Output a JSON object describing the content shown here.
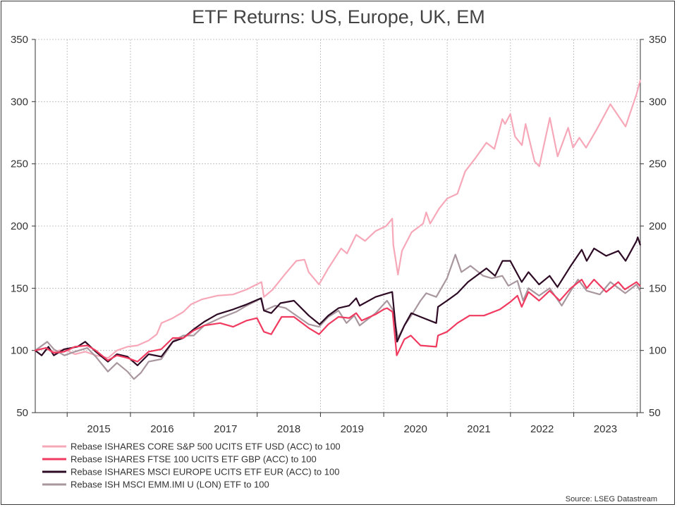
{
  "chart_data": {
    "type": "line",
    "title": "ETF Returns: US, Europe, UK, EM",
    "xlabel": "",
    "ylabel": "",
    "ylim": [
      50,
      350
    ],
    "y_ticks": [
      50,
      100,
      150,
      200,
      250,
      300,
      350
    ],
    "x_range": [
      "2014-07-01",
      "2024-01-20"
    ],
    "x_tick_labels": [
      "2015",
      "2016",
      "2017",
      "2018",
      "2019",
      "2020",
      "2021",
      "2022",
      "2023"
    ],
    "grid": true,
    "legend_position": "bottom-left",
    "series": [
      {
        "name": "Rebase ISHARES CORE S&P 500 UCITS ETF USD (ACC) to 100",
        "color": "#f7a8b8",
        "points": [
          [
            "2014-07-01",
            100
          ],
          [
            "2014-09-01",
            102
          ],
          [
            "2014-10-15",
            99
          ],
          [
            "2014-12-15",
            101
          ],
          [
            "2015-02-15",
            97
          ],
          [
            "2015-04-15",
            99
          ],
          [
            "2015-06-15",
            96
          ],
          [
            "2015-08-25",
            94
          ],
          [
            "2015-10-15",
            100
          ],
          [
            "2015-12-15",
            103
          ],
          [
            "2016-02-10",
            104
          ],
          [
            "2016-04-15",
            108
          ],
          [
            "2016-06-01",
            113
          ],
          [
            "2016-06-28",
            122
          ],
          [
            "2016-09-01",
            126
          ],
          [
            "2016-11-01",
            131
          ],
          [
            "2016-12-15",
            137
          ],
          [
            "2017-02-15",
            141
          ],
          [
            "2017-05-15",
            144
          ],
          [
            "2017-08-15",
            145
          ],
          [
            "2017-11-01",
            149
          ],
          [
            "2018-01-26",
            155
          ],
          [
            "2018-02-09",
            143
          ],
          [
            "2018-04-01",
            149
          ],
          [
            "2018-06-15",
            162
          ],
          [
            "2018-08-15",
            172
          ],
          [
            "2018-10-01",
            173
          ],
          [
            "2018-10-25",
            163
          ],
          [
            "2018-12-24",
            153
          ],
          [
            "2019-02-15",
            166
          ],
          [
            "2019-04-30",
            182
          ],
          [
            "2019-06-03",
            178
          ],
          [
            "2019-07-26",
            193
          ],
          [
            "2019-09-15",
            188
          ],
          [
            "2019-11-15",
            196
          ],
          [
            "2020-01-15",
            200
          ],
          [
            "2020-02-19",
            206
          ],
          [
            "2020-02-25",
            185
          ],
          [
            "2020-03-23",
            161
          ],
          [
            "2020-04-15",
            180
          ],
          [
            "2020-06-10",
            195
          ],
          [
            "2020-08-15",
            202
          ],
          [
            "2020-09-02",
            211
          ],
          [
            "2020-09-25",
            202
          ],
          [
            "2020-11-15",
            214
          ],
          [
            "2020-12-31",
            222
          ],
          [
            "2021-03-01",
            226
          ],
          [
            "2021-04-15",
            244
          ],
          [
            "2021-06-15",
            255
          ],
          [
            "2021-08-15",
            267
          ],
          [
            "2021-09-30",
            262
          ],
          [
            "2021-11-15",
            286
          ],
          [
            "2021-12-01",
            282
          ],
          [
            "2021-12-31",
            290
          ],
          [
            "2022-01-27",
            272
          ],
          [
            "2022-03-08",
            265
          ],
          [
            "2022-03-29",
            282
          ],
          [
            "2022-05-20",
            252
          ],
          [
            "2022-06-16",
            248
          ],
          [
            "2022-08-16",
            287
          ],
          [
            "2022-09-30",
            256
          ],
          [
            "2022-11-30",
            279
          ],
          [
            "2022-12-28",
            263
          ],
          [
            "2023-02-02",
            271
          ],
          [
            "2023-03-13",
            263
          ],
          [
            "2023-05-15",
            278
          ],
          [
            "2023-07-31",
            298
          ],
          [
            "2023-10-27",
            280
          ],
          [
            "2023-12-29",
            306
          ],
          [
            "2024-01-19",
            317
          ]
        ]
      },
      {
        "name": "Rebase ISHARES FTSE 100 UCITS ETF GBP (ACC) to 100",
        "color": "#f03a5f",
        "points": [
          [
            "2014-07-01",
            100
          ],
          [
            "2014-09-01",
            102
          ],
          [
            "2014-10-15",
            98
          ],
          [
            "2014-12-15",
            99
          ],
          [
            "2015-02-15",
            103
          ],
          [
            "2015-04-27",
            104
          ],
          [
            "2015-06-15",
            100
          ],
          [
            "2015-08-24",
            92
          ],
          [
            "2015-10-15",
            96
          ],
          [
            "2015-12-15",
            94
          ],
          [
            "2016-02-11",
            91
          ],
          [
            "2016-04-15",
            99
          ],
          [
            "2016-06-27",
            101
          ],
          [
            "2016-09-01",
            110
          ],
          [
            "2016-11-01",
            110
          ],
          [
            "2016-12-31",
            116
          ],
          [
            "2017-03-01",
            120
          ],
          [
            "2017-06-01",
            122
          ],
          [
            "2017-08-15",
            119
          ],
          [
            "2017-11-01",
            124
          ],
          [
            "2017-12-31",
            126
          ],
          [
            "2018-02-09",
            115
          ],
          [
            "2018-03-23",
            113
          ],
          [
            "2018-05-22",
            127
          ],
          [
            "2018-08-01",
            127
          ],
          [
            "2018-10-26",
            118
          ],
          [
            "2018-12-24",
            113
          ],
          [
            "2019-02-15",
            121
          ],
          [
            "2019-04-15",
            127
          ],
          [
            "2019-06-15",
            126
          ],
          [
            "2019-07-26",
            130
          ],
          [
            "2019-08-27",
            124
          ],
          [
            "2019-11-15",
            129
          ],
          [
            "2019-12-31",
            133
          ],
          [
            "2020-01-20",
            134
          ],
          [
            "2020-02-21",
            131
          ],
          [
            "2020-03-16",
            96
          ],
          [
            "2020-03-23",
            98
          ],
          [
            "2020-04-29",
            109
          ],
          [
            "2020-06-05",
            112
          ],
          [
            "2020-07-31",
            104
          ],
          [
            "2020-10-30",
            103
          ],
          [
            "2020-11-09",
            112
          ],
          [
            "2020-12-31",
            115
          ],
          [
            "2021-03-01",
            122
          ],
          [
            "2021-05-10",
            128
          ],
          [
            "2021-08-01",
            128
          ],
          [
            "2021-11-01",
            133
          ],
          [
            "2021-12-31",
            139
          ],
          [
            "2022-02-10",
            144
          ],
          [
            "2022-03-07",
            135
          ],
          [
            "2022-04-15",
            147
          ],
          [
            "2022-06-15",
            140
          ],
          [
            "2022-08-15",
            148
          ],
          [
            "2022-10-12",
            140
          ],
          [
            "2022-12-15",
            150
          ],
          [
            "2023-02-16",
            157
          ],
          [
            "2023-03-17",
            150
          ],
          [
            "2023-04-28",
            157
          ],
          [
            "2023-07-07",
            147
          ],
          [
            "2023-09-15",
            155
          ],
          [
            "2023-10-23",
            149
          ],
          [
            "2023-12-29",
            155
          ],
          [
            "2024-01-17",
            152
          ]
        ]
      },
      {
        "name": "Rebase ISHARES MSCI EUROPE UCITS ETF EUR (ACC) to 100",
        "color": "#2e0b25",
        "points": [
          [
            "2014-07-01",
            100
          ],
          [
            "2014-08-07",
            96
          ],
          [
            "2014-09-15",
            103
          ],
          [
            "2014-10-16",
            96
          ],
          [
            "2014-12-15",
            101
          ],
          [
            "2015-03-01",
            103
          ],
          [
            "2015-04-15",
            107
          ],
          [
            "2015-06-15",
            99
          ],
          [
            "2015-08-24",
            91
          ],
          [
            "2015-10-15",
            97
          ],
          [
            "2015-12-15",
            95
          ],
          [
            "2016-02-11",
            88
          ],
          [
            "2016-04-15",
            97
          ],
          [
            "2016-06-27",
            95
          ],
          [
            "2016-09-01",
            107
          ],
          [
            "2016-11-01",
            110
          ],
          [
            "2016-12-31",
            117
          ],
          [
            "2017-03-01",
            123
          ],
          [
            "2017-05-15",
            129
          ],
          [
            "2017-08-15",
            133
          ],
          [
            "2017-11-01",
            137
          ],
          [
            "2018-01-23",
            142
          ],
          [
            "2018-02-09",
            132
          ],
          [
            "2018-03-23",
            130
          ],
          [
            "2018-05-15",
            138
          ],
          [
            "2018-08-01",
            140
          ],
          [
            "2018-10-26",
            128
          ],
          [
            "2018-12-27",
            121
          ],
          [
            "2019-02-15",
            128
          ],
          [
            "2019-04-15",
            134
          ],
          [
            "2019-06-15",
            136
          ],
          [
            "2019-07-26",
            142
          ],
          [
            "2019-08-15",
            136
          ],
          [
            "2019-11-15",
            143
          ],
          [
            "2019-12-31",
            145
          ],
          [
            "2020-02-19",
            147
          ],
          [
            "2020-03-18",
            107
          ],
          [
            "2020-04-29",
            120
          ],
          [
            "2020-06-08",
            130
          ],
          [
            "2020-07-31",
            127
          ],
          [
            "2020-10-30",
            122
          ],
          [
            "2020-11-09",
            135
          ],
          [
            "2020-12-31",
            140
          ],
          [
            "2021-03-01",
            146
          ],
          [
            "2021-05-01",
            155
          ],
          [
            "2021-08-15",
            166
          ],
          [
            "2021-10-04",
            160
          ],
          [
            "2021-11-16",
            172
          ],
          [
            "2021-12-31",
            172
          ],
          [
            "2022-03-07",
            155
          ],
          [
            "2022-04-15",
            163
          ],
          [
            "2022-06-15",
            153
          ],
          [
            "2022-08-15",
            160
          ],
          [
            "2022-09-29",
            151
          ],
          [
            "2022-12-15",
            168
          ],
          [
            "2023-02-16",
            181
          ],
          [
            "2023-03-17",
            172
          ],
          [
            "2023-04-28",
            182
          ],
          [
            "2023-07-07",
            176
          ],
          [
            "2023-09-15",
            180
          ],
          [
            "2023-10-27",
            172
          ],
          [
            "2023-12-29",
            188
          ],
          [
            "2024-01-05",
            191
          ],
          [
            "2024-01-19",
            185
          ]
        ]
      },
      {
        "name": "Rebase ISH MSCI EMM.IMI U (LON) ETF to 100",
        "color": "#a9979f",
        "points": [
          [
            "2014-07-01",
            100
          ],
          [
            "2014-09-08",
            107
          ],
          [
            "2014-10-16",
            101
          ],
          [
            "2014-12-16",
            96
          ],
          [
            "2015-02-15",
            99
          ],
          [
            "2015-04-27",
            102
          ],
          [
            "2015-06-15",
            95
          ],
          [
            "2015-08-24",
            83
          ],
          [
            "2015-10-15",
            90
          ],
          [
            "2015-12-15",
            83
          ],
          [
            "2016-01-21",
            77
          ],
          [
            "2016-03-01",
            82
          ],
          [
            "2016-04-15",
            91
          ],
          [
            "2016-06-27",
            93
          ],
          [
            "2016-09-07",
            108
          ],
          [
            "2016-11-01",
            112
          ],
          [
            "2016-12-31",
            112
          ],
          [
            "2017-03-01",
            120
          ],
          [
            "2017-06-01",
            126
          ],
          [
            "2017-09-01",
            131
          ],
          [
            "2017-11-01",
            136
          ],
          [
            "2018-01-26",
            142
          ],
          [
            "2018-02-09",
            132
          ],
          [
            "2018-04-15",
            136
          ],
          [
            "2018-06-15",
            134
          ],
          [
            "2018-10-26",
            121
          ],
          [
            "2018-12-24",
            119
          ],
          [
            "2019-02-15",
            127
          ],
          [
            "2019-04-15",
            132
          ],
          [
            "2019-05-31",
            122
          ],
          [
            "2019-07-15",
            128
          ],
          [
            "2019-08-15",
            120
          ],
          [
            "2019-11-15",
            130
          ],
          [
            "2019-12-31",
            137
          ],
          [
            "2020-01-20",
            140
          ],
          [
            "2020-02-21",
            133
          ],
          [
            "2020-03-23",
            110
          ],
          [
            "2020-04-29",
            120
          ],
          [
            "2020-06-08",
            128
          ],
          [
            "2020-07-31",
            140
          ],
          [
            "2020-09-02",
            146
          ],
          [
            "2020-10-30",
            143
          ],
          [
            "2020-12-31",
            158
          ],
          [
            "2021-02-17",
            177
          ],
          [
            "2021-03-24",
            163
          ],
          [
            "2021-05-15",
            168
          ],
          [
            "2021-07-28",
            160
          ],
          [
            "2021-09-15",
            158
          ],
          [
            "2021-11-15",
            160
          ],
          [
            "2021-12-20",
            152
          ],
          [
            "2022-02-10",
            156
          ],
          [
            "2022-03-15",
            140
          ],
          [
            "2022-04-15",
            150
          ],
          [
            "2022-06-15",
            144
          ],
          [
            "2022-08-15",
            150
          ],
          [
            "2022-10-24",
            136
          ],
          [
            "2022-12-15",
            148
          ],
          [
            "2023-01-26",
            157
          ],
          [
            "2023-03-17",
            148
          ],
          [
            "2023-05-31",
            145
          ],
          [
            "2023-07-31",
            155
          ],
          [
            "2023-10-25",
            146
          ],
          [
            "2023-12-29",
            153
          ],
          [
            "2024-01-19",
            148
          ]
        ]
      }
    ]
  },
  "source_text": "Source: LSEG Datastream"
}
